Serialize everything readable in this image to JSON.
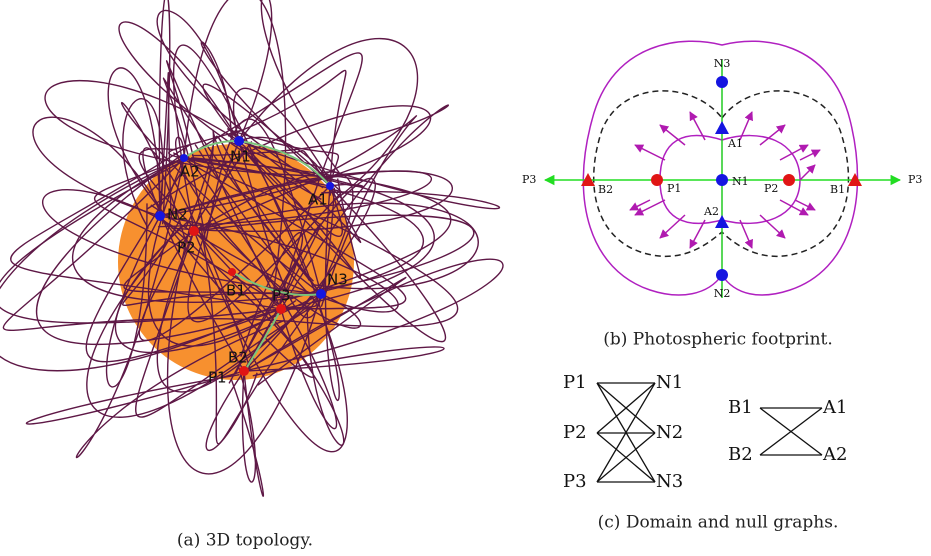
{
  "panel_a": {
    "caption": "(a) 3D topology.",
    "labels": [
      "N1",
      "A2",
      "A1",
      "N2",
      "P2",
      "B1",
      "P3",
      "N3",
      "B2",
      "P1"
    ]
  },
  "panel_b": {
    "caption": "(b) Photospheric footprint.",
    "labels": [
      "N3",
      "A1",
      "N1",
      "P1",
      "P2",
      "B2",
      "B1",
      "A2",
      "N2",
      "P3",
      "P3"
    ]
  },
  "panel_c": {
    "caption": "(c) Domain and null graphs.",
    "domain_graph": {
      "left": [
        "P1",
        "P2",
        "P3"
      ],
      "right": [
        "N1",
        "N2",
        "N3"
      ]
    },
    "null_graph": {
      "left": [
        "B1",
        "B2"
      ],
      "right": [
        "A1",
        "A2"
      ]
    }
  }
}
